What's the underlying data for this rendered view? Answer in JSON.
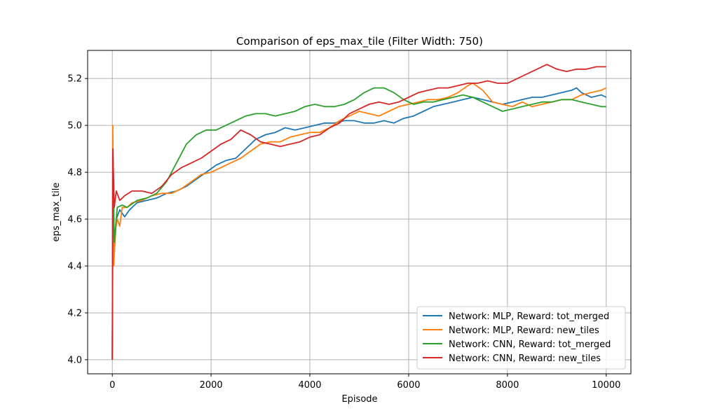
{
  "chart_data": {
    "type": "line",
    "title": "Comparison of eps_max_tile (Filter Width: 750)",
    "xlabel": "Episode",
    "ylabel": "eps_max_tile",
    "xlim": [
      -500,
      10500
    ],
    "ylim": [
      3.94,
      5.32
    ],
    "xticks": [
      0,
      2000,
      4000,
      6000,
      8000,
      10000
    ],
    "yticks": [
      4.0,
      4.2,
      4.4,
      4.6,
      4.8,
      5.0,
      5.2
    ],
    "ytick_labels": [
      "4.0",
      "4.2",
      "4.4",
      "4.6",
      "4.8",
      "5.0",
      "5.2"
    ],
    "grid": true,
    "legend_position": "lower-right",
    "series": [
      {
        "name": "Network: MLP, Reward: tot_merged",
        "color": "#1f77b4",
        "points": [
          [
            0,
            4.0
          ],
          [
            15,
            4.9
          ],
          [
            40,
            4.45
          ],
          [
            80,
            4.6
          ],
          [
            150,
            4.64
          ],
          [
            250,
            4.61
          ],
          [
            350,
            4.64
          ],
          [
            500,
            4.67
          ],
          [
            700,
            4.68
          ],
          [
            900,
            4.69
          ],
          [
            1100,
            4.71
          ],
          [
            1300,
            4.72
          ],
          [
            1500,
            4.74
          ],
          [
            1700,
            4.77
          ],
          [
            1900,
            4.8
          ],
          [
            2100,
            4.83
          ],
          [
            2300,
            4.85
          ],
          [
            2500,
            4.86
          ],
          [
            2700,
            4.9
          ],
          [
            2900,
            4.94
          ],
          [
            3100,
            4.96
          ],
          [
            3300,
            4.97
          ],
          [
            3500,
            4.99
          ],
          [
            3700,
            4.98
          ],
          [
            3900,
            4.99
          ],
          [
            4100,
            5.0
          ],
          [
            4300,
            5.01
          ],
          [
            4500,
            5.01
          ],
          [
            4700,
            5.02
          ],
          [
            4900,
            5.02
          ],
          [
            5100,
            5.01
          ],
          [
            5300,
            5.01
          ],
          [
            5500,
            5.02
          ],
          [
            5700,
            5.01
          ],
          [
            5900,
            5.03
          ],
          [
            6100,
            5.04
          ],
          [
            6300,
            5.06
          ],
          [
            6500,
            5.08
          ],
          [
            6700,
            5.09
          ],
          [
            6900,
            5.1
          ],
          [
            7100,
            5.11
          ],
          [
            7300,
            5.12
          ],
          [
            7500,
            5.11
          ],
          [
            7700,
            5.1
          ],
          [
            7900,
            5.09
          ],
          [
            8100,
            5.1
          ],
          [
            8300,
            5.11
          ],
          [
            8500,
            5.12
          ],
          [
            8700,
            5.12
          ],
          [
            8900,
            5.13
          ],
          [
            9100,
            5.14
          ],
          [
            9300,
            5.15
          ],
          [
            9400,
            5.16
          ],
          [
            9500,
            5.14
          ],
          [
            9700,
            5.12
          ],
          [
            9900,
            5.13
          ],
          [
            10000,
            5.12
          ]
        ]
      },
      {
        "name": "Network: MLP, Reward: new_tiles",
        "color": "#ff7f0e",
        "points": [
          [
            0,
            4.0
          ],
          [
            10,
            5.0
          ],
          [
            30,
            4.4
          ],
          [
            60,
            4.55
          ],
          [
            100,
            4.6
          ],
          [
            150,
            4.57
          ],
          [
            200,
            4.65
          ],
          [
            300,
            4.65
          ],
          [
            400,
            4.67
          ],
          [
            600,
            4.68
          ],
          [
            800,
            4.7
          ],
          [
            1000,
            4.71
          ],
          [
            1200,
            4.71
          ],
          [
            1400,
            4.73
          ],
          [
            1600,
            4.76
          ],
          [
            1800,
            4.79
          ],
          [
            2000,
            4.8
          ],
          [
            2200,
            4.82
          ],
          [
            2400,
            4.84
          ],
          [
            2600,
            4.86
          ],
          [
            2800,
            4.89
          ],
          [
            3000,
            4.92
          ],
          [
            3200,
            4.93
          ],
          [
            3400,
            4.93
          ],
          [
            3600,
            4.95
          ],
          [
            3800,
            4.96
          ],
          [
            4000,
            4.97
          ],
          [
            4200,
            4.97
          ],
          [
            4400,
            4.99
          ],
          [
            4600,
            5.02
          ],
          [
            4800,
            5.04
          ],
          [
            5000,
            5.06
          ],
          [
            5200,
            5.05
          ],
          [
            5400,
            5.04
          ],
          [
            5600,
            5.06
          ],
          [
            5800,
            5.08
          ],
          [
            6000,
            5.09
          ],
          [
            6200,
            5.1
          ],
          [
            6400,
            5.11
          ],
          [
            6600,
            5.11
          ],
          [
            6800,
            5.12
          ],
          [
            7000,
            5.14
          ],
          [
            7200,
            5.17
          ],
          [
            7300,
            5.18
          ],
          [
            7500,
            5.15
          ],
          [
            7700,
            5.1
          ],
          [
            7900,
            5.09
          ],
          [
            8100,
            5.08
          ],
          [
            8300,
            5.1
          ],
          [
            8500,
            5.08
          ],
          [
            8700,
            5.09
          ],
          [
            8900,
            5.1
          ],
          [
            9100,
            5.11
          ],
          [
            9300,
            5.11
          ],
          [
            9500,
            5.13
          ],
          [
            9700,
            5.14
          ],
          [
            9900,
            5.15
          ],
          [
            10000,
            5.16
          ]
        ]
      },
      {
        "name": "Network: CNN, Reward: tot_merged",
        "color": "#2ca02c",
        "points": [
          [
            0,
            4.0
          ],
          [
            15,
            4.85
          ],
          [
            40,
            4.5
          ],
          [
            100,
            4.65
          ],
          [
            200,
            4.66
          ],
          [
            300,
            4.65
          ],
          [
            500,
            4.68
          ],
          [
            700,
            4.69
          ],
          [
            900,
            4.71
          ],
          [
            1100,
            4.76
          ],
          [
            1300,
            4.84
          ],
          [
            1500,
            4.92
          ],
          [
            1700,
            4.96
          ],
          [
            1900,
            4.98
          ],
          [
            2100,
            4.98
          ],
          [
            2300,
            5.0
          ],
          [
            2500,
            5.02
          ],
          [
            2700,
            5.04
          ],
          [
            2900,
            5.05
          ],
          [
            3100,
            5.05
          ],
          [
            3300,
            5.04
          ],
          [
            3500,
            5.05
          ],
          [
            3700,
            5.06
          ],
          [
            3900,
            5.08
          ],
          [
            4100,
            5.09
          ],
          [
            4300,
            5.08
          ],
          [
            4500,
            5.08
          ],
          [
            4700,
            5.09
          ],
          [
            4900,
            5.11
          ],
          [
            5100,
            5.14
          ],
          [
            5300,
            5.16
          ],
          [
            5500,
            5.16
          ],
          [
            5700,
            5.14
          ],
          [
            5900,
            5.11
          ],
          [
            6100,
            5.09
          ],
          [
            6300,
            5.1
          ],
          [
            6500,
            5.1
          ],
          [
            6700,
            5.11
          ],
          [
            6900,
            5.12
          ],
          [
            7100,
            5.13
          ],
          [
            7300,
            5.12
          ],
          [
            7500,
            5.1
          ],
          [
            7700,
            5.08
          ],
          [
            7900,
            5.06
          ],
          [
            8100,
            5.07
          ],
          [
            8300,
            5.08
          ],
          [
            8500,
            5.09
          ],
          [
            8700,
            5.1
          ],
          [
            8900,
            5.1
          ],
          [
            9100,
            5.11
          ],
          [
            9300,
            5.11
          ],
          [
            9500,
            5.1
          ],
          [
            9700,
            5.09
          ],
          [
            9900,
            5.08
          ],
          [
            10000,
            5.08
          ]
        ]
      },
      {
        "name": "Network: CNN, Reward: new_tiles",
        "color": "#d62728",
        "points": [
          [
            0,
            4.0
          ],
          [
            10,
            4.9
          ],
          [
            40,
            4.65
          ],
          [
            80,
            4.72
          ],
          [
            150,
            4.68
          ],
          [
            250,
            4.7
          ],
          [
            400,
            4.72
          ],
          [
            600,
            4.72
          ],
          [
            800,
            4.71
          ],
          [
            1000,
            4.74
          ],
          [
            1200,
            4.79
          ],
          [
            1400,
            4.82
          ],
          [
            1600,
            4.84
          ],
          [
            1800,
            4.86
          ],
          [
            2000,
            4.89
          ],
          [
            2200,
            4.92
          ],
          [
            2400,
            4.94
          ],
          [
            2600,
            4.98
          ],
          [
            2800,
            4.96
          ],
          [
            3000,
            4.93
          ],
          [
            3200,
            4.92
          ],
          [
            3400,
            4.91
          ],
          [
            3600,
            4.92
          ],
          [
            3800,
            4.93
          ],
          [
            4000,
            4.95
          ],
          [
            4200,
            4.96
          ],
          [
            4400,
            4.99
          ],
          [
            4600,
            5.01
          ],
          [
            4800,
            5.05
          ],
          [
            5000,
            5.07
          ],
          [
            5200,
            5.09
          ],
          [
            5400,
            5.1
          ],
          [
            5600,
            5.09
          ],
          [
            5800,
            5.1
          ],
          [
            6000,
            5.12
          ],
          [
            6200,
            5.14
          ],
          [
            6400,
            5.15
          ],
          [
            6600,
            5.16
          ],
          [
            6800,
            5.16
          ],
          [
            7000,
            5.17
          ],
          [
            7200,
            5.18
          ],
          [
            7400,
            5.18
          ],
          [
            7600,
            5.19
          ],
          [
            7800,
            5.18
          ],
          [
            8000,
            5.18
          ],
          [
            8200,
            5.2
          ],
          [
            8400,
            5.22
          ],
          [
            8600,
            5.24
          ],
          [
            8800,
            5.26
          ],
          [
            9000,
            5.24
          ],
          [
            9200,
            5.23
          ],
          [
            9400,
            5.24
          ],
          [
            9600,
            5.24
          ],
          [
            9800,
            5.25
          ],
          [
            10000,
            5.25
          ]
        ]
      }
    ]
  }
}
